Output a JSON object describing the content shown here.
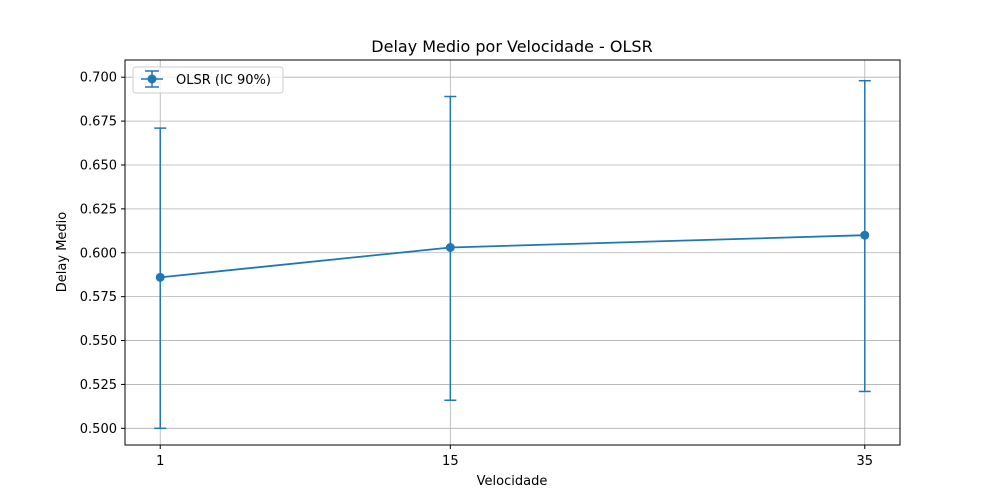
{
  "chart_data": {
    "type": "line",
    "title": "Delay Medio por Velocidade - OLSR",
    "xlabel": "Velocidade",
    "ylabel": "Delay Medio",
    "x": [
      1,
      15,
      35
    ],
    "xticks": [
      "1",
      "15",
      "35"
    ],
    "yticks": [
      "0.500",
      "0.525",
      "0.550",
      "0.575",
      "0.600",
      "0.625",
      "0.650",
      "0.675",
      "0.700"
    ],
    "ylim": [
      0.4905,
      0.7098
    ],
    "xlim": [
      -0.7,
      36.7
    ],
    "grid": true,
    "legend_position": "top-left",
    "series": [
      {
        "name": "OLSR (IC 90%)",
        "color": "#1f77b4",
        "values": [
          0.586,
          0.603,
          0.61
        ],
        "err_low": [
          0.5,
          0.516,
          0.521
        ],
        "err_high": [
          0.671,
          0.689,
          0.698
        ]
      }
    ]
  }
}
